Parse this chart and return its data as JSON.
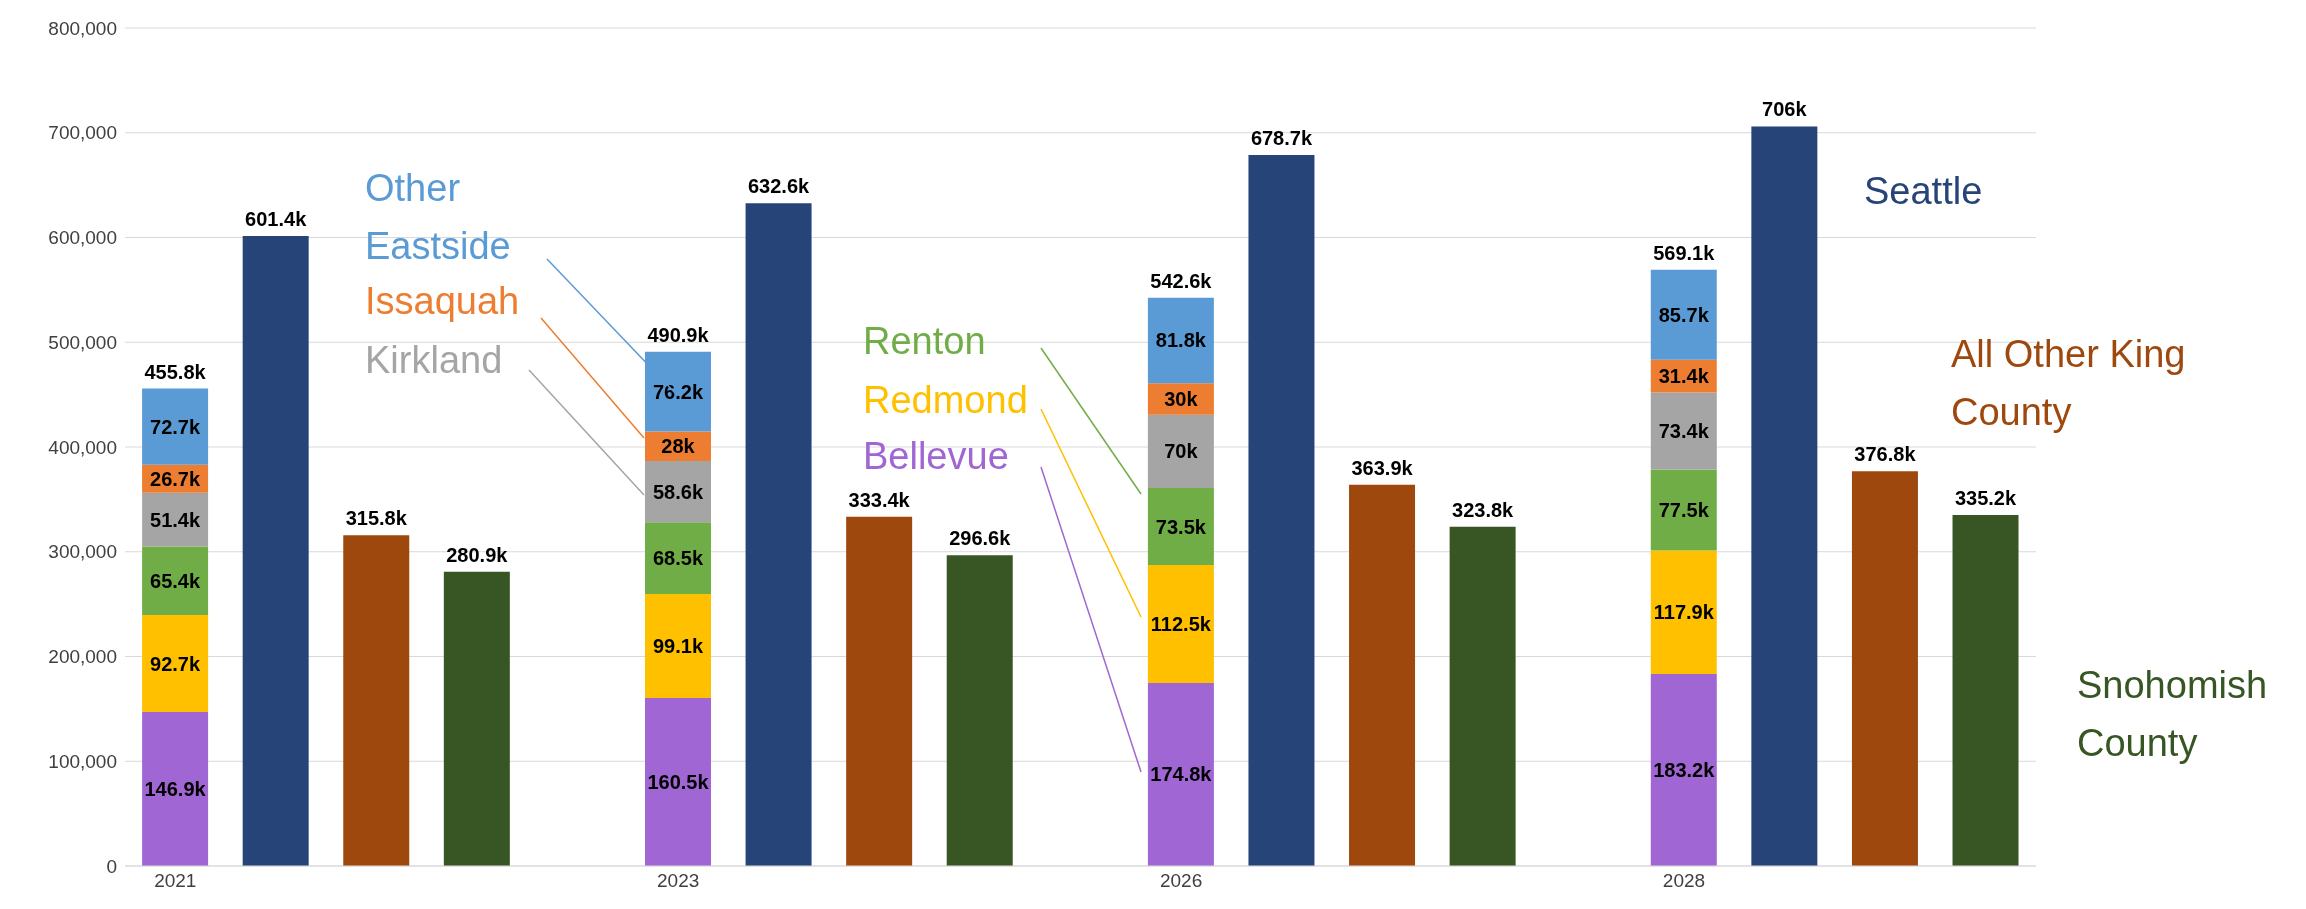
{
  "chart_data": {
    "type": "bar",
    "stacked": true,
    "categories": [
      "2021",
      null,
      null,
      null,
      null,
      "2023",
      null,
      null,
      null,
      null,
      "2026",
      null,
      null,
      null,
      null,
      "2028",
      null,
      null,
      null
    ],
    "series": [
      {
        "name": "Bellevue",
        "color": "#a066d3",
        "values": [
          146900,
          null,
          null,
          null,
          null,
          160500,
          null,
          null,
          null,
          null,
          174800,
          null,
          null,
          null,
          null,
          183200,
          null,
          null,
          null
        ],
        "value_labels": [
          "146.9k",
          null,
          null,
          null,
          null,
          "160.5k",
          null,
          null,
          null,
          null,
          "174.8k",
          null,
          null,
          null,
          null,
          "183.2k",
          null,
          null,
          null
        ]
      },
      {
        "name": "Redmond",
        "color": "#ffc000",
        "values": [
          92700,
          null,
          null,
          null,
          null,
          99100,
          null,
          null,
          null,
          null,
          112500,
          null,
          null,
          null,
          null,
          117900,
          null,
          null,
          null
        ],
        "value_labels": [
          "92.7k",
          null,
          null,
          null,
          null,
          "99.1k",
          null,
          null,
          null,
          null,
          "112.5k",
          null,
          null,
          null,
          null,
          "117.9k",
          null,
          null,
          null
        ]
      },
      {
        "name": "Renton",
        "color": "#70ad47",
        "values": [
          65400,
          null,
          null,
          null,
          null,
          68500,
          null,
          null,
          null,
          null,
          73500,
          null,
          null,
          null,
          null,
          77500,
          null,
          null,
          null
        ],
        "value_labels": [
          "65.4k",
          null,
          null,
          null,
          null,
          "68.5k",
          null,
          null,
          null,
          null,
          "73.5k",
          null,
          null,
          null,
          null,
          "77.5k",
          null,
          null,
          null
        ]
      },
      {
        "name": "Kirkland",
        "color": "#a5a5a5",
        "values": [
          51400,
          null,
          null,
          null,
          null,
          58600,
          null,
          null,
          null,
          null,
          70000,
          null,
          null,
          null,
          null,
          73400,
          null,
          null,
          null
        ],
        "value_labels": [
          "51.4k",
          null,
          null,
          null,
          null,
          "58.6k",
          null,
          null,
          null,
          null,
          "70k",
          null,
          null,
          null,
          null,
          "73.4k",
          null,
          null,
          null
        ]
      },
      {
        "name": "Issaquah",
        "color": "#ed7d31",
        "values": [
          26700,
          null,
          null,
          null,
          null,
          28000,
          null,
          null,
          null,
          null,
          30000,
          null,
          null,
          null,
          null,
          31400,
          null,
          null,
          null
        ],
        "value_labels": [
          "26.7k",
          null,
          null,
          null,
          null,
          "28k",
          null,
          null,
          null,
          null,
          "30k",
          null,
          null,
          null,
          null,
          "31.4k",
          null,
          null,
          null
        ]
      },
      {
        "name": "Other Eastside",
        "color": "#5b9bd5",
        "values": [
          72700,
          null,
          null,
          null,
          null,
          76200,
          null,
          null,
          null,
          null,
          81800,
          null,
          null,
          null,
          null,
          85700,
          null,
          null,
          null
        ],
        "value_labels": [
          "72.7k",
          null,
          null,
          null,
          null,
          "76.2k",
          null,
          null,
          null,
          null,
          "81.8k",
          null,
          null,
          null,
          null,
          "85.7k",
          null,
          null,
          null
        ]
      },
      {
        "name": "Seattle",
        "color": "#264478",
        "values": [
          null,
          601400,
          null,
          null,
          null,
          null,
          632600,
          null,
          null,
          null,
          null,
          678700,
          null,
          null,
          null,
          null,
          706000,
          null,
          null
        ],
        "value_labels": [
          null,
          "601.4k",
          null,
          null,
          null,
          null,
          "632.6k",
          null,
          null,
          null,
          null,
          "678.7k",
          null,
          null,
          null,
          null,
          "706k",
          null,
          null
        ]
      },
      {
        "name": "All Other King County",
        "color": "#9e480e",
        "values": [
          null,
          null,
          315800,
          null,
          null,
          null,
          null,
          333400,
          null,
          null,
          null,
          null,
          363900,
          null,
          null,
          null,
          null,
          376800,
          null
        ],
        "value_labels": [
          null,
          null,
          "315.8k",
          null,
          null,
          null,
          null,
          "333.4k",
          null,
          null,
          null,
          null,
          "363.9k",
          null,
          null,
          null,
          null,
          "376.8k",
          null
        ]
      },
      {
        "name": "Snohomish County",
        "color": "#375623",
        "values": [
          null,
          null,
          null,
          280900,
          null,
          null,
          null,
          null,
          296600,
          null,
          null,
          null,
          null,
          323800,
          null,
          null,
          null,
          null,
          335200
        ],
        "value_labels": [
          null,
          null,
          null,
          "280.9k",
          null,
          null,
          null,
          null,
          "296.6k",
          null,
          null,
          null,
          null,
          "323.8k",
          null,
          null,
          null,
          null,
          "335.2k"
        ]
      }
    ],
    "totals": [
      "455.8k",
      null,
      null,
      null,
      null,
      "490.9k",
      null,
      null,
      null,
      null,
      "542.6k",
      null,
      null,
      null,
      null,
      "569.1k",
      null,
      null,
      null
    ],
    "ylim": [
      0,
      800000
    ],
    "yticks": [
      {
        "value": 0,
        "label": "0"
      },
      {
        "value": 100000,
        "label": "100,000"
      },
      {
        "value": 200000,
        "label": "200,000"
      },
      {
        "value": 300000,
        "label": "300,000"
      },
      {
        "value": 400000,
        "label": "400,000"
      },
      {
        "value": 500000,
        "label": "500,000"
      },
      {
        "value": 600000,
        "label": "600,000"
      },
      {
        "value": 700000,
        "label": "700,000"
      },
      {
        "value": 800000,
        "label": "800,000"
      }
    ],
    "grid": "y",
    "legend": false
  }
}
